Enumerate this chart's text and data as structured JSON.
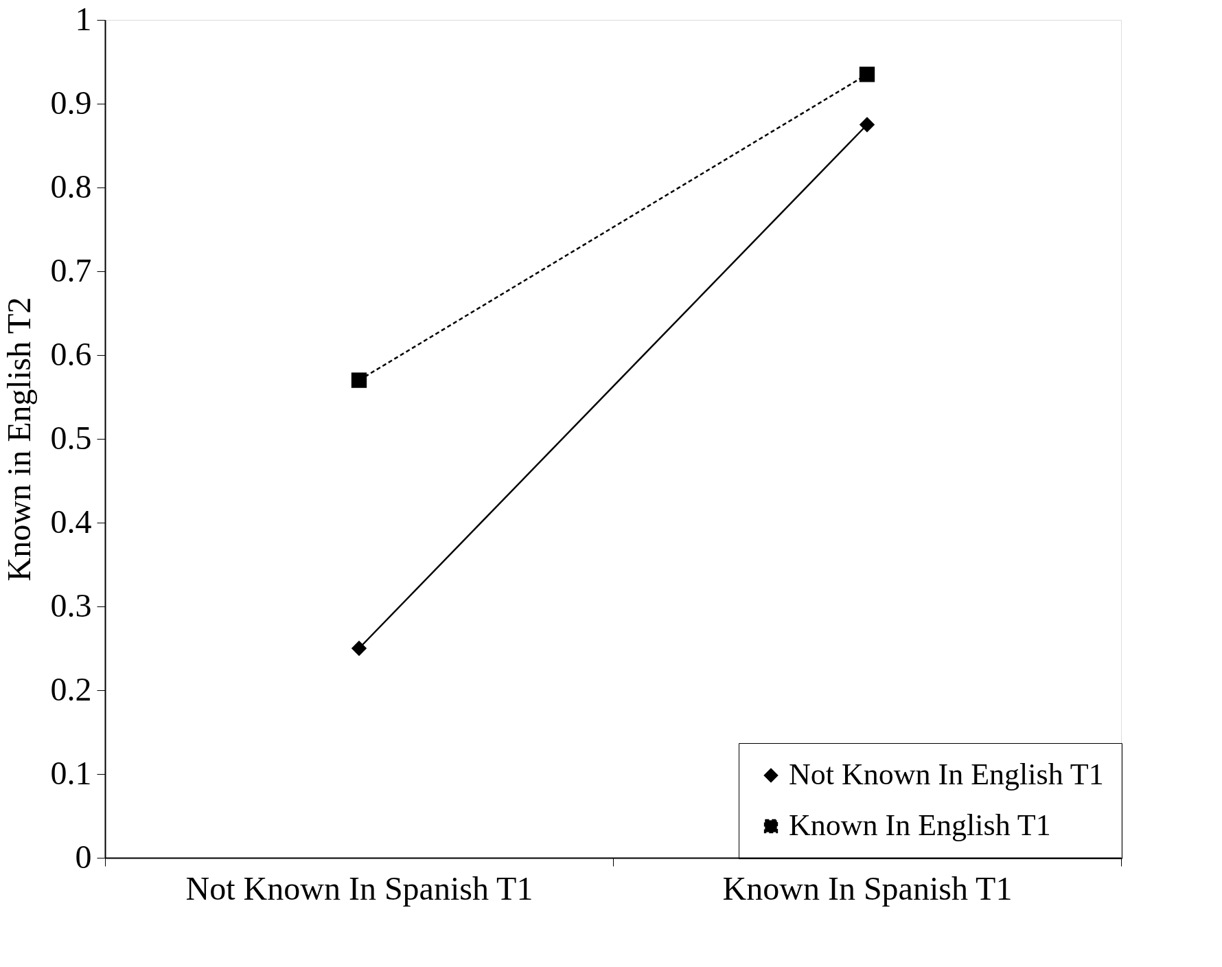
{
  "chart_data": {
    "type": "line",
    "ylabel": "Known in English T2",
    "categories": [
      "Not Known In Spanish T1",
      "Known In Spanish T1"
    ],
    "series": [
      {
        "name": "Not Known In English T1",
        "color": "#000000",
        "values": [
          0.25,
          0.875
        ],
        "marker": "diamond",
        "line_style": "solid"
      },
      {
        "name": "Known In English T1",
        "color": "#000000",
        "values": [
          0.57,
          0.935
        ],
        "marker": "square",
        "line_style": "dashed"
      }
    ],
    "ylim": [
      0,
      1
    ],
    "yticks": [
      0,
      0.1,
      0.2,
      0.3,
      0.4,
      0.5,
      0.6,
      0.7,
      0.8,
      0.9,
      1
    ],
    "grid": false,
    "legend": "bottom right"
  }
}
